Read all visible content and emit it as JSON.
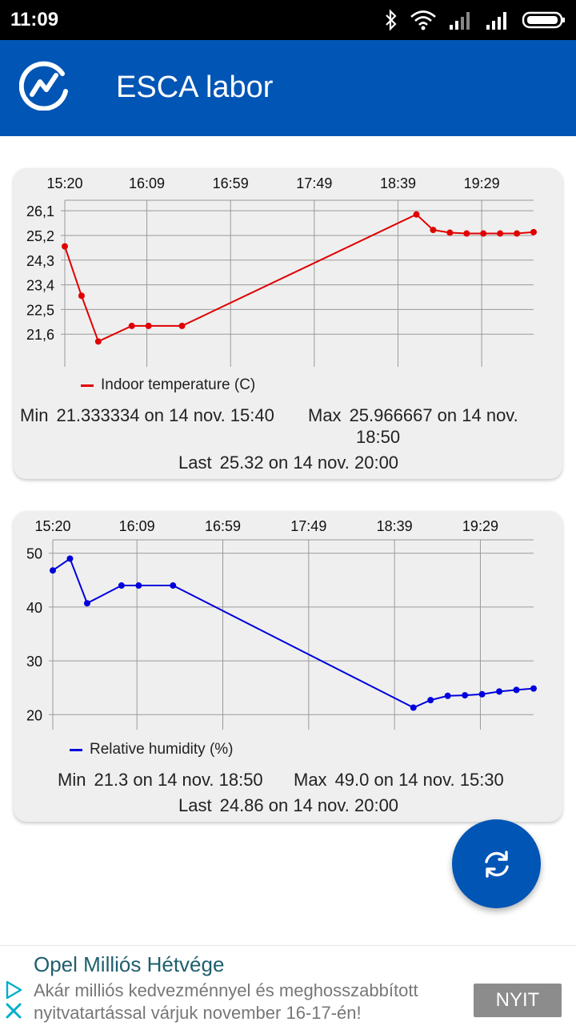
{
  "status_bar": {
    "time": "11:09"
  },
  "app_bar": {
    "title": "ESCA labor"
  },
  "chart_data": [
    {
      "type": "line",
      "title": "",
      "xlabel": "",
      "ylabel": "",
      "x_tick_labels": [
        "15:20",
        "16:09",
        "16:59",
        "17:49",
        "18:39",
        "19:29"
      ],
      "y_tick_labels": [
        "26,1",
        "25,2",
        "24,3",
        "23,4",
        "22,5",
        "21,6"
      ],
      "y_ticks": [
        26.1,
        25.2,
        24.3,
        23.4,
        22.5,
        21.6
      ],
      "ylim": [
        20.7,
        26.25
      ],
      "xlim": [
        "15:20",
        "20:00"
      ],
      "grid": true,
      "legend_position": "bottom-left",
      "color": "#e00000",
      "series": [
        {
          "name": "Indoor temperature (C)",
          "x": [
            "15:20",
            "15:30",
            "15:40",
            "16:00",
            "16:10",
            "16:30",
            "18:50",
            "19:00",
            "19:10",
            "19:20",
            "19:30",
            "19:40",
            "19:50",
            "20:00"
          ],
          "values": [
            24.8,
            23.0,
            21.333334,
            21.9,
            21.9,
            21.9,
            25.966667,
            25.4,
            25.3,
            25.27,
            25.27,
            25.27,
            25.27,
            25.32
          ]
        }
      ]
    },
    {
      "type": "line",
      "title": "",
      "xlabel": "",
      "ylabel": "",
      "x_tick_labels": [
        "15:20",
        "16:09",
        "16:59",
        "17:49",
        "18:39",
        "19:29"
      ],
      "y_tick_labels": [
        "50",
        "40",
        "30",
        "20"
      ],
      "y_ticks": [
        50,
        40,
        30,
        20
      ],
      "ylim": [
        18.7,
        51.3
      ],
      "xlim": [
        "15:20",
        "20:00"
      ],
      "grid": true,
      "legend_position": "bottom-left",
      "color": "#0000dd",
      "series": [
        {
          "name": "Relative humidity (%)",
          "x": [
            "15:20",
            "15:30",
            "15:40",
            "16:00",
            "16:10",
            "16:30",
            "18:50",
            "19:00",
            "19:10",
            "19:20",
            "19:30",
            "19:40",
            "19:50",
            "20:00"
          ],
          "values": [
            46.8,
            49.0,
            40.7,
            44.0,
            44.0,
            44.0,
            21.3,
            22.7,
            23.5,
            23.6,
            23.8,
            24.3,
            24.6,
            24.86
          ]
        }
      ]
    }
  ],
  "cards": [
    {
      "min_label": "Min",
      "min_value": "21.333334 on 14 nov. 15:40",
      "max_label": "Max",
      "max_value_line1": "25.966667 on 14 nov.",
      "max_value_line2": "18:50",
      "last_label": "Last",
      "last_value": "25.32 on 14 nov. 20:00"
    },
    {
      "min_label": "Min",
      "min_value": "21.3 on 14 nov. 18:50",
      "max_label": "Max",
      "max_value": "49.0 on 14 nov. 15:30",
      "last_label": "Last",
      "last_value": "24.86 on 14 nov. 20:00"
    }
  ],
  "fab": {
    "icon": "refresh-icon"
  },
  "ad": {
    "title": "Opel Milliós Hétvége",
    "text": "Akár milliós kedvezménnyel és meghosszabbított nyitvatartással várjuk november 16-17-én!",
    "button": "NYIT",
    "accent_color": "#00aecd"
  },
  "colors": {
    "app_bar": "#0155b5",
    "temperature_series": "#e00000",
    "humidity_series": "#0000dd",
    "card_background": "#efefef"
  }
}
